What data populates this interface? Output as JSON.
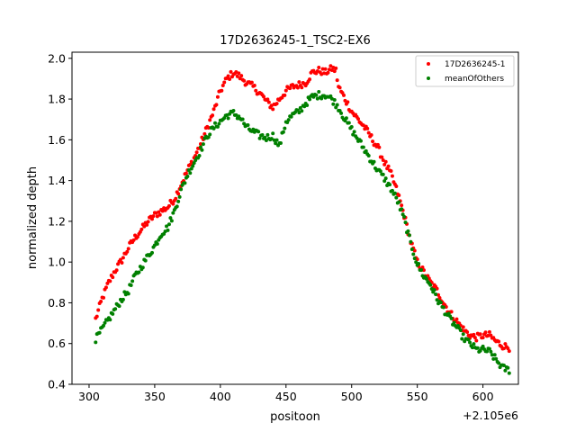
{
  "chart_data": {
    "type": "scatter",
    "title": "17D2636245-1_TSC2-EX6",
    "xlabel": "positoon",
    "ylabel": "normalized depth",
    "x_offset_label": "+2.105e6",
    "xlim": [
      287,
      627
    ],
    "ylim": [
      0.4,
      2.03
    ],
    "x_ticks": [
      300,
      350,
      400,
      450,
      500,
      550,
      600
    ],
    "x_tick_labels": [
      "300",
      "350",
      "400",
      "450",
      "500",
      "550",
      "600"
    ],
    "y_ticks": [
      0.4,
      0.6,
      0.8,
      1.0,
      1.2,
      1.4,
      1.6,
      1.8,
      2.0
    ],
    "y_tick_labels": [
      "0.4",
      "0.6",
      "0.8",
      "1.0",
      "1.2",
      "1.4",
      "1.6",
      "1.8",
      "2.0"
    ],
    "grid": false,
    "legend_position": "top-right",
    "series": [
      {
        "name": "17D2636245-1",
        "color": "#ff0000",
        "anchors": [
          [
            305,
            0.72
          ],
          [
            310,
            0.82
          ],
          [
            315,
            0.9
          ],
          [
            320,
            0.96
          ],
          [
            325,
            1.01
          ],
          [
            330,
            1.07
          ],
          [
            335,
            1.12
          ],
          [
            340,
            1.16
          ],
          [
            345,
            1.2
          ],
          [
            350,
            1.23
          ],
          [
            355,
            1.25
          ],
          [
            360,
            1.27
          ],
          [
            365,
            1.31
          ],
          [
            370,
            1.38
          ],
          [
            375,
            1.45
          ],
          [
            380,
            1.51
          ],
          [
            385,
            1.58
          ],
          [
            390,
            1.66
          ],
          [
            395,
            1.74
          ],
          [
            400,
            1.84
          ],
          [
            405,
            1.9
          ],
          [
            410,
            1.93
          ],
          [
            415,
            1.91
          ],
          [
            420,
            1.88
          ],
          [
            425,
            1.86
          ],
          [
            430,
            1.83
          ],
          [
            435,
            1.79
          ],
          [
            440,
            1.76
          ],
          [
            445,
            1.8
          ],
          [
            450,
            1.84
          ],
          [
            455,
            1.86
          ],
          [
            460,
            1.87
          ],
          [
            465,
            1.88
          ],
          [
            470,
            1.93
          ],
          [
            475,
            1.94
          ],
          [
            480,
            1.93
          ],
          [
            485,
            1.95
          ],
          [
            488,
            1.94
          ],
          [
            490,
            1.86
          ],
          [
            495,
            1.8
          ],
          [
            500,
            1.74
          ],
          [
            505,
            1.7
          ],
          [
            510,
            1.66
          ],
          [
            515,
            1.61
          ],
          [
            520,
            1.56
          ],
          [
            525,
            1.49
          ],
          [
            530,
            1.43
          ],
          [
            535,
            1.34
          ],
          [
            540,
            1.23
          ],
          [
            545,
            1.1
          ],
          [
            550,
            1.0
          ],
          [
            555,
            0.95
          ],
          [
            560,
            0.9
          ],
          [
            565,
            0.86
          ],
          [
            570,
            0.8
          ],
          [
            575,
            0.75
          ],
          [
            580,
            0.71
          ],
          [
            585,
            0.67
          ],
          [
            590,
            0.64
          ],
          [
            595,
            0.63
          ],
          [
            600,
            0.64
          ],
          [
            605,
            0.64
          ],
          [
            610,
            0.61
          ],
          [
            615,
            0.59
          ],
          [
            620,
            0.58
          ]
        ]
      },
      {
        "name": "meanOfOthers",
        "color": "#008000",
        "anchors": [
          [
            305,
            0.62
          ],
          [
            310,
            0.67
          ],
          [
            315,
            0.72
          ],
          [
            320,
            0.77
          ],
          [
            325,
            0.82
          ],
          [
            330,
            0.86
          ],
          [
            335,
            0.93
          ],
          [
            340,
            0.98
          ],
          [
            345,
            1.03
          ],
          [
            350,
            1.08
          ],
          [
            355,
            1.14
          ],
          [
            360,
            1.17
          ],
          [
            365,
            1.25
          ],
          [
            370,
            1.35
          ],
          [
            375,
            1.43
          ],
          [
            380,
            1.49
          ],
          [
            385,
            1.55
          ],
          [
            390,
            1.62
          ],
          [
            395,
            1.66
          ],
          [
            400,
            1.69
          ],
          [
            405,
            1.72
          ],
          [
            410,
            1.73
          ],
          [
            415,
            1.71
          ],
          [
            420,
            1.66
          ],
          [
            425,
            1.64
          ],
          [
            430,
            1.62
          ],
          [
            435,
            1.61
          ],
          [
            440,
            1.62
          ],
          [
            445,
            1.57
          ],
          [
            450,
            1.69
          ],
          [
            455,
            1.72
          ],
          [
            460,
            1.74
          ],
          [
            465,
            1.78
          ],
          [
            470,
            1.81
          ],
          [
            475,
            1.82
          ],
          [
            480,
            1.82
          ],
          [
            485,
            1.8
          ],
          [
            490,
            1.76
          ],
          [
            495,
            1.7
          ],
          [
            500,
            1.65
          ],
          [
            505,
            1.6
          ],
          [
            510,
            1.55
          ],
          [
            515,
            1.5
          ],
          [
            520,
            1.45
          ],
          [
            525,
            1.41
          ],
          [
            530,
            1.36
          ],
          [
            535,
            1.3
          ],
          [
            540,
            1.21
          ],
          [
            545,
            1.09
          ],
          [
            550,
            0.99
          ],
          [
            555,
            0.93
          ],
          [
            560,
            0.89
          ],
          [
            565,
            0.82
          ],
          [
            570,
            0.77
          ],
          [
            575,
            0.72
          ],
          [
            580,
            0.68
          ],
          [
            585,
            0.63
          ],
          [
            590,
            0.6
          ],
          [
            595,
            0.57
          ],
          [
            600,
            0.57
          ],
          [
            605,
            0.56
          ],
          [
            610,
            0.52
          ],
          [
            615,
            0.48
          ],
          [
            620,
            0.47
          ]
        ]
      }
    ]
  }
}
